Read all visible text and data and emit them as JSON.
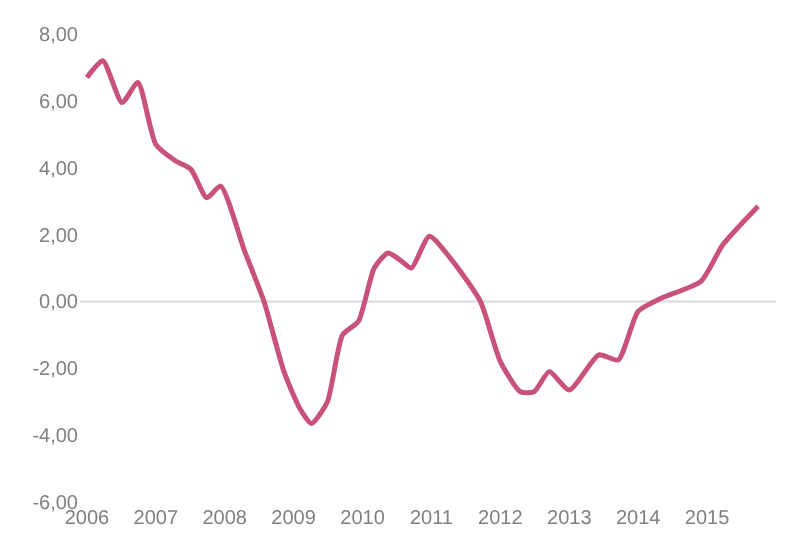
{
  "chart_data": {
    "type": "line",
    "x": [
      2006.0,
      2006.23,
      2006.51,
      2006.74,
      2007.0,
      2007.29,
      2007.51,
      2007.74,
      2007.94,
      2008.29,
      2008.57,
      2008.86,
      2009.09,
      2009.26,
      2009.49,
      2009.71,
      2009.94,
      2010.17,
      2010.37,
      2010.57,
      2010.71,
      2010.97,
      2011.31,
      2011.71,
      2012.0,
      2012.29,
      2012.49,
      2012.71,
      2013.0,
      2013.43,
      2013.71,
      2014.0,
      2014.34,
      2014.91,
      2015.23,
      2015.74
    ],
    "series": [
      {
        "color": "#c8527a",
        "values": [
          6.7,
          7.2,
          5.95,
          6.55,
          4.7,
          4.2,
          3.95,
          3.1,
          3.45,
          1.5,
          0.0,
          -2.1,
          -3.2,
          -3.65,
          -3.0,
          -1.0,
          -0.6,
          1.0,
          1.45,
          1.2,
          1.0,
          1.95,
          1.2,
          0.0,
          -1.8,
          -2.7,
          -2.7,
          -2.1,
          -2.65,
          -1.6,
          -1.75,
          -0.3,
          0.1,
          0.6,
          1.7,
          2.85
        ]
      }
    ],
    "xlim": [
      2005.9,
      2016.0
    ],
    "xticks": [
      2006,
      2007,
      2008,
      2009,
      2010,
      2011,
      2012,
      2013,
      2014,
      2015
    ],
    "ylim": [
      -6,
      8
    ],
    "yticks": [
      {
        "value": -6,
        "label": "-6,00"
      },
      {
        "value": -4,
        "label": "-4,00"
      },
      {
        "value": -2,
        "label": "-2,00"
      },
      {
        "value": 0,
        "label": "0,00"
      },
      {
        "value": 2,
        "label": "2,00"
      },
      {
        "value": 4,
        "label": "4,00"
      },
      {
        "value": 6,
        "label": "6,00"
      },
      {
        "value": 8,
        "label": "8,00"
      }
    ],
    "ref_lines": [
      {
        "axis": "y",
        "value": 0,
        "color": "#d9d9d9"
      }
    ],
    "grid": false,
    "legend": false,
    "marker": "none",
    "line_style": "solid"
  }
}
